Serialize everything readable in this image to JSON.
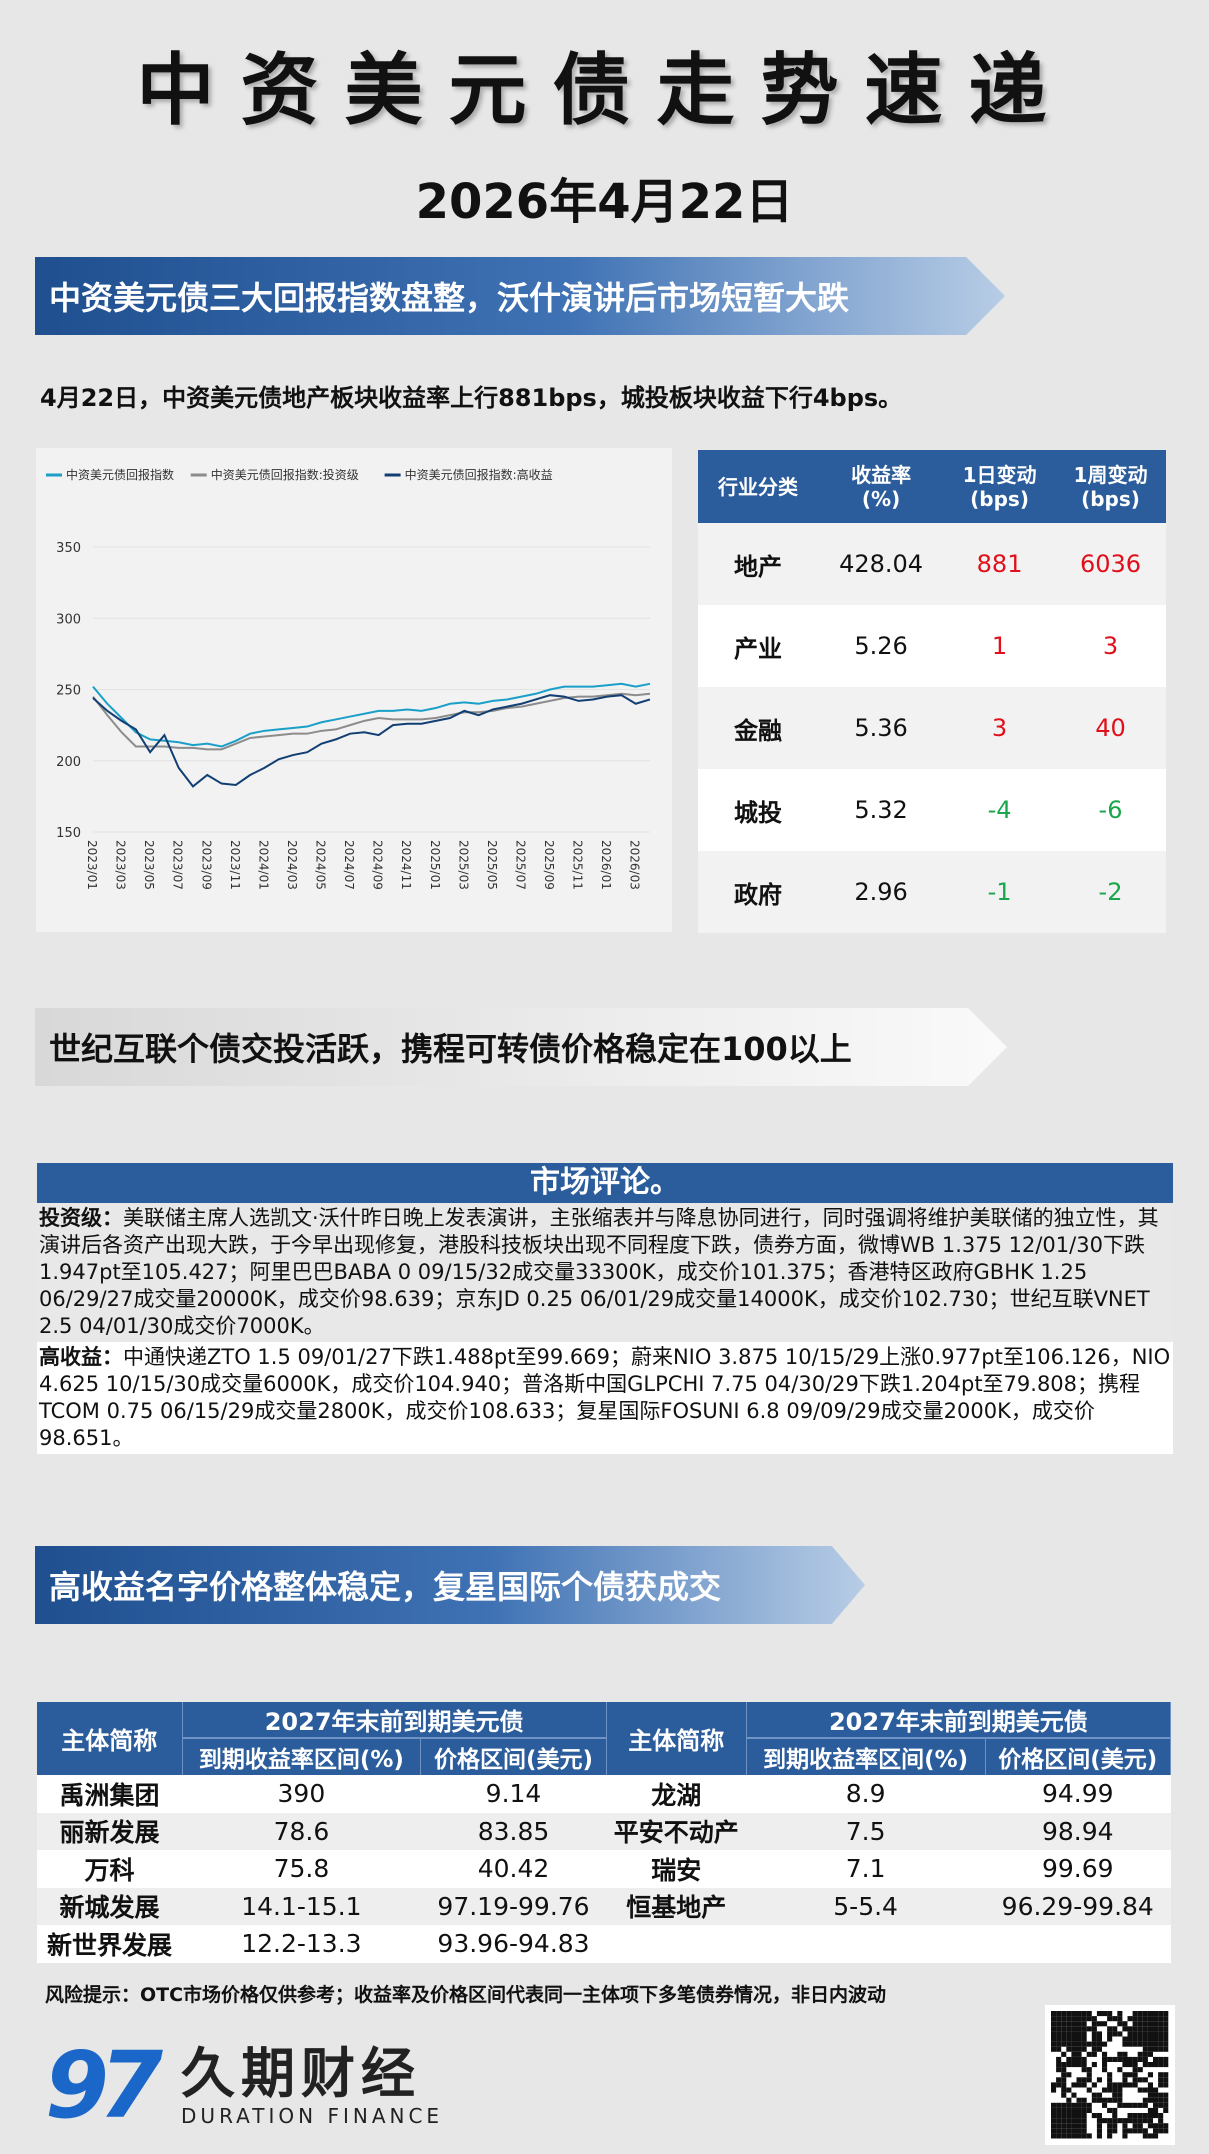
{
  "header": {
    "title": "中资美元债走势速递",
    "date": "2026年4月22日"
  },
  "banners": [
    "中资美元债三大回报指数盘整，沃什演讲后市场短暂大跌",
    "世纪互联个债交投活跃，携程可转债价格稳定在100以上",
    "高收益名字价格整体稳定，复星国际个债获成交"
  ],
  "summary": "4月22日，中资美元债地产板块收益率上行881bps，城投板块收益下行4bps。",
  "chart_data": {
    "type": "line",
    "legend_position": "top",
    "ylim": [
      150,
      350
    ],
    "yticks": [
      150,
      200,
      250,
      300,
      350
    ],
    "xticks": [
      "2023/01",
      "2023/03",
      "2023/05",
      "2023/07",
      "2023/09",
      "2023/11",
      "2024/01",
      "2024/03",
      "2024/05",
      "2024/07",
      "2024/09",
      "2024/11",
      "2025/01",
      "2025/03",
      "2025/05",
      "2025/07",
      "2025/09",
      "2025/11",
      "2026/01",
      "2026/03"
    ],
    "x": [
      "2023/01",
      "2023/02",
      "2023/03",
      "2023/04",
      "2023/05",
      "2023/06",
      "2023/07",
      "2023/08",
      "2023/09",
      "2023/10",
      "2023/11",
      "2023/12",
      "2024/01",
      "2024/02",
      "2024/03",
      "2024/04",
      "2024/05",
      "2024/06",
      "2024/07",
      "2024/08",
      "2024/09",
      "2024/10",
      "2024/11",
      "2024/12",
      "2025/01",
      "2025/02",
      "2025/03",
      "2025/04",
      "2025/05",
      "2025/06",
      "2025/07",
      "2025/08",
      "2025/09",
      "2025/10",
      "2025/11",
      "2025/12",
      "2026/01",
      "2026/02",
      "2026/03",
      "2026/04"
    ],
    "series": [
      {
        "name": "中资美元债回报指数",
        "color": "#1aa0c8",
        "values": [
          252,
          240,
          230,
          220,
          215,
          214,
          213,
          211,
          212,
          210,
          214,
          219,
          221,
          222,
          223,
          224,
          227,
          229,
          231,
          233,
          235,
          235,
          236,
          235,
          237,
          240,
          241,
          240,
          242,
          243,
          245,
          247,
          250,
          252,
          252,
          252,
          253,
          254,
          252,
          254
        ]
      },
      {
        "name": "中资美元债回报指数:投资级",
        "color": "#8c8c8c",
        "values": [
          245,
          232,
          220,
          210,
          210,
          210,
          209,
          209,
          208,
          208,
          212,
          216,
          217,
          218,
          219,
          219,
          221,
          222,
          225,
          228,
          230,
          229,
          229,
          229,
          230,
          232,
          234,
          234,
          235,
          237,
          238,
          240,
          242,
          244,
          245,
          245,
          246,
          247,
          246,
          247
        ]
      },
      {
        "name": "中资美元债回报指数:高收益",
        "color": "#123f73",
        "values": [
          244,
          235,
          228,
          222,
          206,
          218,
          195,
          182,
          190,
          184,
          183,
          190,
          195,
          201,
          204,
          206,
          212,
          215,
          219,
          220,
          218,
          225,
          226,
          226,
          228,
          230,
          235,
          232,
          236,
          238,
          240,
          243,
          246,
          245,
          242,
          243,
          245,
          246,
          240,
          243
        ]
      }
    ]
  },
  "sector_table": {
    "headers": [
      "行业分类",
      "收益率\n(%)",
      "1日变动\n(bps)",
      "1周变动\n(bps)"
    ],
    "rows": [
      [
        "地产",
        "428.04",
        "881",
        "6036"
      ],
      [
        "产业",
        "5.26",
        "1",
        "3"
      ],
      [
        "金融",
        "5.36",
        "3",
        "40"
      ],
      [
        "城投",
        "5.32",
        "-4",
        "-6"
      ],
      [
        "政府",
        "2.96",
        "-1",
        "-2"
      ]
    ],
    "colors": {
      "up": "#e0101a",
      "down": "#1aa64a"
    }
  },
  "comment": {
    "title": "市场评论。",
    "ig_label": "投资级：",
    "ig_text": "美联储主席人选凯文·沃什昨日晚上发表演讲，主张缩表并与降息协同进行，同时强调将维护美联储的独立性，其演讲后各资产出现大跌，于今早出现修复，港股科技板块出现不同程度下跌，债券方面，微博WB 1.375 12/01/30下跌1.947pt至105.427；阿里巴巴BABA 0 09/15/32成交量33300K，成交价101.375；香港特区政府GBHK 1.25 06/29/27成交量20000K，成交价98.639；京东JD 0.25 06/01/29成交量14000K，成交价102.730；世纪互联VNET 2.5 04/01/30成交价7000K。",
    "hy_label": "高收益：",
    "hy_text": "中通快递ZTO 1.5 09/01/27下跌1.488pt至99.669；蔚来NIO 3.875 10/15/29上涨0.977pt至106.126，NIO 4.625 10/15/30成交量6000K，成交价104.940；普洛斯中国GLPCHI 7.75 04/30/29下跌1.204pt至79.808；携程TCOM 0.75 06/15/29成交量2800K，成交价108.633；复星国际FOSUNI 6.8 09/09/29成交量2000K，成交价98.651。"
  },
  "hy_table": {
    "name_header": "主体简称",
    "group_header": "2027年末前到期美元债",
    "yield_header": "到期收益率区间(%)",
    "price_header": "价格区间(美元)",
    "left": [
      [
        "禹洲集团",
        "390",
        "9.14"
      ],
      [
        "丽新发展",
        "78.6",
        "83.85"
      ],
      [
        "万科",
        "75.8",
        "40.42"
      ],
      [
        "新城发展",
        "14.1-15.1",
        "97.19-99.76"
      ],
      [
        "新世界发展",
        "12.2-13.3",
        "93.96-94.83"
      ]
    ],
    "right": [
      [
        "龙湖",
        "8.9",
        "94.99"
      ],
      [
        "平安不动产",
        "7.5",
        "98.94"
      ],
      [
        "瑞安",
        "7.1",
        "99.69"
      ],
      [
        "恒基地产",
        "5-5.4",
        "96.29-99.84"
      ]
    ]
  },
  "risk": "风险提示：OTC市场价格仅供参考；收益率及价格区间代表同一主体项下多笔债券情况，非日内波动",
  "footer": {
    "logo_mark": "97",
    "brand_cn": "久期财经",
    "brand_en": "DURATION FINANCE",
    "brand_color": "#1a66c9"
  }
}
